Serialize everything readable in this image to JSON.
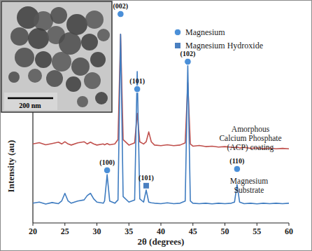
{
  "chart_data": {
    "type": "line",
    "x_label": "2θ (degrees)",
    "y_label": "Intensity (au)",
    "xlim": [
      20,
      60
    ],
    "xticks": [
      20,
      25,
      30,
      35,
      40,
      45,
      50,
      55,
      60
    ],
    "ylim": [
      0,
      100
    ],
    "yticks": [],
    "tick_labels": "x",
    "grid": false,
    "x": [
      20,
      21,
      22,
      23,
      24,
      24.5,
      25,
      25.5,
      26,
      27,
      28,
      28.5,
      29,
      29.5,
      30,
      31,
      31.2,
      31.6,
      32.0,
      32.8,
      33.3,
      33.7,
      34.1,
      35,
      35.9,
      36.3,
      36.7,
      37.3,
      37.7,
      38.1,
      38.5,
      39,
      40,
      41,
      42,
      43,
      43.8,
      44.2,
      44.6,
      45,
      46,
      47,
      48,
      49,
      50,
      51,
      51.5,
      51.9,
      52.3,
      53,
      54,
      55,
      56,
      57,
      58,
      59,
      60
    ],
    "series": [
      {
        "label": [
          "Amorphous",
          "Calcium Phosphate",
          "(ACP) coating"
        ],
        "color": "#c0504d",
        "values": [
          36,
          36.6,
          35.6,
          36.2,
          36.8,
          36,
          37,
          36,
          35.5,
          36.5,
          37,
          36,
          36.8,
          36,
          35.5,
          36,
          35.6,
          36.2,
          35.6,
          36,
          38,
          86,
          38,
          35.5,
          36.5,
          50,
          37,
          36,
          37,
          41.5,
          37,
          35.5,
          35.2,
          35.6,
          35.2,
          35.5,
          36.5,
          64,
          36,
          35,
          35.3,
          34.8,
          35,
          34.6,
          34.8,
          34.5,
          34.3,
          34.6,
          34.2,
          34.4,
          34,
          34.2,
          33.9,
          34.1,
          33.8,
          34,
          33.8
        ]
      },
      {
        "label": [
          "Magnesium",
          "Substrate"
        ],
        "color": "#3f7cc0",
        "values": [
          9,
          9.5,
          8.6,
          9.3,
          8.8,
          10,
          13.5,
          10,
          9,
          10,
          10.5,
          12.5,
          13.5,
          11,
          9.5,
          9,
          10,
          22,
          10,
          9,
          10.5,
          86,
          12,
          9.5,
          10.5,
          69,
          11,
          9.5,
          15,
          9.5,
          9.2,
          9,
          8.8,
          9.2,
          8.8,
          9,
          10,
          72,
          10,
          9,
          8.8,
          9,
          8.7,
          9,
          8.8,
          9,
          9.5,
          17.5,
          9.5,
          8.8,
          9,
          8.7,
          9,
          8.8,
          9,
          8.8,
          9
        ]
      }
    ],
    "phases": [
      {
        "name": "Magnesium",
        "marker": "circle",
        "color": "#4a8fd8"
      },
      {
        "name": "Magnesium Hydroxide",
        "marker": "square",
        "color": "#4a7fc0"
      }
    ],
    "peaks": [
      {
        "label": "(100)",
        "x": 31.6,
        "y": 24,
        "phase": 0
      },
      {
        "label": "(002)",
        "x": 33.7,
        "y": 95.2,
        "phase": 0
      },
      {
        "label": "(101)",
        "x": 36.3,
        "y": 61,
        "phase": 0
      },
      {
        "label": "(101)",
        "x": 37.7,
        "y": 17,
        "phase": 1
      },
      {
        "label": "(102)",
        "x": 44.2,
        "y": 73.5,
        "phase": 0
      },
      {
        "label": "(110)",
        "x": 51.9,
        "y": 24.6,
        "phase": 0
      }
    ],
    "inset": {
      "scale_bar": "200 nm"
    }
  }
}
